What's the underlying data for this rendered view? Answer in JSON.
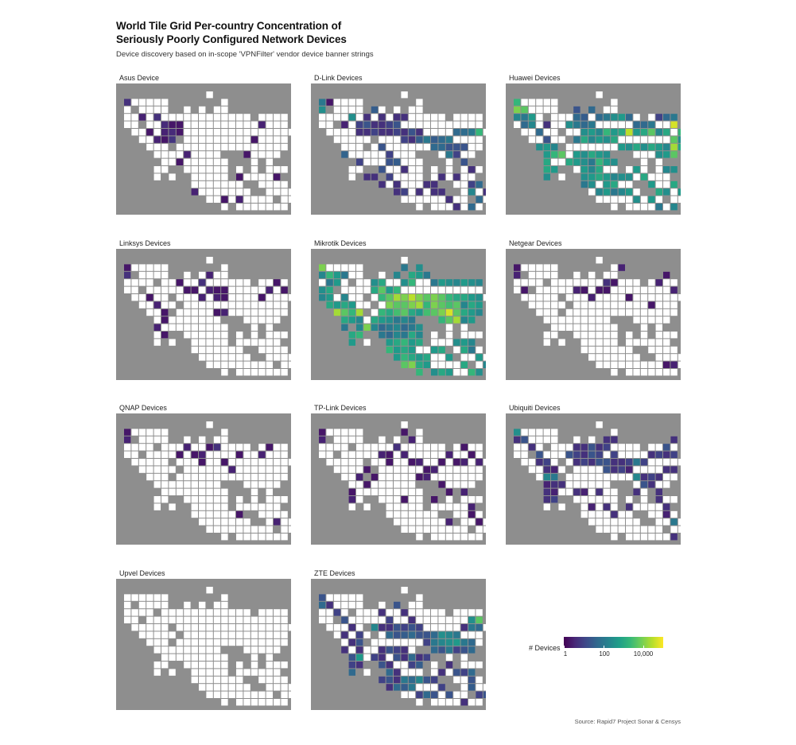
{
  "chart_data": {
    "type": "heatmap",
    "title_line1": "World Tile Grid Per-country Concentration of",
    "title_line2": "Seriously Poorly Configured Network Devices",
    "subtitle": "Device discovery based on in-scope 'VPNFilter' vendor device banner strings",
    "caption": "Source: Rapid7 Project Sonar & Censys",
    "legend": {
      "title": "# Devices",
      "scale": "log10",
      "min": 1,
      "max": 100000,
      "tick_values": [
        1,
        100,
        10000
      ],
      "tick_labels": [
        "1",
        "100",
        "10,000"
      ],
      "colors": [
        "#440154",
        "#482878",
        "#3e4989",
        "#31688e",
        "#26828e",
        "#1f9e89",
        "#35b779",
        "#6ece58",
        "#b5de2b",
        "#fde725"
      ]
    },
    "facets": [
      {
        "name": "Asus Device",
        "counts": {
          "0,1": 5,
          "2,3": 3,
          "4,3": 5,
          "5,4": 4,
          "3,5": 2,
          "4,6": 3,
          "5,6": 2,
          "6,6": 6,
          "5,5": 3,
          "6,5": 4,
          "7,5": 2,
          "6,4": 2,
          "7,4": 2,
          "8,8": 3,
          "7,9": 2,
          "9,13": 3,
          "15,11": 2,
          "15,14": 3,
          "16,8": 2,
          "17,6": 2,
          "18,4": 3,
          "20,11": 2,
          "13,14": 2
        }
      },
      {
        "name": "D-Link Devices",
        "counts": {
          "0,1": 100,
          "0,2": 300,
          "1,1": 2,
          "3,4": 3,
          "4,3": 300,
          "5,4": 10,
          "3,8": 40,
          "5,9": 10,
          "6,4": 20,
          "7,4": 5,
          "8,4": 5,
          "9,4": 10,
          "10,4": 20,
          "5,5": 5,
          "6,5": 5,
          "7,5": 10,
          "8,5": 5,
          "9,5": 5,
          "10,5": 10,
          "11,5": 5,
          "12,5": 20,
          "13,5": 5,
          "6,3": 5,
          "7,2": 30,
          "8,3": 5,
          "10,3": 5,
          "11,3": 5,
          "11,6": 10,
          "12,6": 5,
          "13,6": 30,
          "14,6": 100,
          "15,6": 30,
          "16,6": 50,
          "17,6": 100,
          "18,5": 50,
          "19,5": 60,
          "20,5": 100,
          "21,5": 2000,
          "15,7": 50,
          "16,7": 50,
          "17,7": 20,
          "18,7": 20,
          "19,7": 20,
          "17,8": 100,
          "18,8": 10,
          "19,9": 20,
          "8,7": 20,
          "9,8": 10,
          "8,10": 20,
          "7,11": 5,
          "9,11": 10,
          "10,12": 5,
          "10,13": 5,
          "11,13": 10,
          "16,11": 5,
          "18,11": 5,
          "20,10": 5,
          "20,12": 10,
          "21,12": 50,
          "20,13": 200,
          "21,14": 50,
          "22,13": 5,
          "20,15": 50,
          "18,15": 5,
          "17,14": 5,
          "16,13": 5,
          "6,11": 5,
          "15,12": 5,
          "15,13": 5,
          "9,9": 20,
          "10,9": 30,
          "11,10": 5,
          "8,12": 5,
          "13,13": 5,
          "14,12": 5
        }
      },
      {
        "name": "Huawei Devices",
        "counts": {
          "0,1": 2000,
          "0,2": 10000,
          "1,2": 5000,
          "1,3": 100,
          "0,3": 200,
          "1,4": 50,
          "2,3": 500,
          "2,4": 200,
          "3,5": 50,
          "4,4": 5,
          "4,6": 20,
          "3,7": 300,
          "4,7": 500,
          "5,7": 200,
          "5,8": 2000,
          "6,8": 5000,
          "4,8": 500,
          "4,9": 1000,
          "5,10": 500,
          "4,10": 1000,
          "4,11": 300,
          "8,2": 20,
          "8,3": 50,
          "7,4": 300,
          "8,4": 100,
          "9,4": 50,
          "10,4": 100,
          "11,3": 50,
          "12,3": 100,
          "9,3": 30,
          "10,2": 50,
          "13,3": 300,
          "14,3": 500,
          "15,3": 50,
          "16,4": 50,
          "17,4": 50,
          "18,4": 100,
          "20,3": 50,
          "21,3": 100,
          "19,3": 10,
          "9,5": 300,
          "10,5": 500,
          "11,5": 200,
          "12,5": 2000,
          "13,5": 500,
          "14,5": 1000,
          "15,5": 30000,
          "16,5": 500,
          "17,5": 1000,
          "18,5": 5000,
          "19,5": 200,
          "20,5": 1000,
          "21,4": 50000,
          "22,5": 2000,
          "21,6": 5000,
          "22,6": 300,
          "8,6": 100,
          "9,6": 1000,
          "10,6": 200,
          "11,6": 500,
          "12,6": 300,
          "13,6": 1000,
          "14,7": 500,
          "15,7": 300,
          "16,7": 1000,
          "17,7": 300,
          "18,7": 1000,
          "19,7": 500,
          "20,7": 200,
          "21,7": 20000,
          "22,7": 1000,
          "19,8": 300,
          "20,8": 500,
          "21,8": 5000,
          "8,8": 500,
          "9,8": 300,
          "10,8": 1000,
          "11,8": 500,
          "12,8": 300,
          "7,9": 1000,
          "8,9": 500,
          "9,9": 300,
          "10,9": 100,
          "11,9": 2000,
          "12,9": 500,
          "13,9": 300,
          "9,10": 500,
          "10,10": 200,
          "11,10": 1000,
          "9,11": 300,
          "10,11": 500,
          "11,11": 1000,
          "12,11": 500,
          "13,11": 200,
          "14,11": 300,
          "12,12": 500,
          "13,12": 1000,
          "9,12": 100,
          "10,12": 300,
          "11,13": 200,
          "12,13": 500,
          "13,13": 100,
          "14,13": 200,
          "15,13": 500,
          "16,14": 300,
          "18,14": 500,
          "19,13": 1000,
          "20,13": 300,
          "21,12": 1000,
          "21,10": 300,
          "20,10": 200,
          "22,13": 500,
          "19,15": 100,
          "21,15": 200,
          "16,10": 500,
          "15,11": 300,
          "17,11": 1000,
          "18,12": 500
        }
      },
      {
        "name": "Linksys Devices",
        "counts": {
          "0,1": 2,
          "0,2": 5,
          "3,5": 2,
          "4,6": 3,
          "5,7": 2,
          "5,8": 2,
          "4,9": 3,
          "5,10": 2,
          "7,3": 2,
          "8,4": 2,
          "10,3": 5,
          "11,2": 3,
          "11,4": 3,
          "9,4": 2,
          "10,5": 3,
          "12,4": 2,
          "12,5": 3,
          "13,4": 2,
          "13,5": 2,
          "18,5": 2,
          "19,4": 3,
          "20,3": 2,
          "21,4": 2,
          "12,7": 2,
          "13,7": 3
        }
      },
      {
        "name": "Mikrotik Devices",
        "counts": {
          "0,1": 10000,
          "0,2": 200,
          "1,3": 100,
          "2,3": 500,
          "0,4": 300,
          "1,4": 1000,
          "0,5": 200,
          "1,5": 500,
          "1,6": 1000,
          "2,6": 500,
          "3,5": 200,
          "3,6": 1000,
          "4,6": 500,
          "2,7": 20000,
          "3,7": 5000,
          "4,7": 2000,
          "5,7": 20000,
          "3,8": 1000,
          "4,8": 500,
          "5,8": 200,
          "6,9": 10000,
          "5,9": 200,
          "4,10": 1000,
          "4,11": 500,
          "5,10": 2000,
          "3,9": 100,
          "1,2": 2000,
          "2,2": 500,
          "3,2": 100,
          "7,3": 300,
          "8,3": 1000,
          "7,4": 1000,
          "8,4": 5000,
          "9,4": 500,
          "10,4": 2000,
          "11,3": 300,
          "12,3": 2000,
          "12,2": 1000,
          "13,1": 300,
          "13,2": 500,
          "14,2": 100,
          "10,2": 200,
          "11,1": 100,
          "15,3": 100,
          "16,3": 500,
          "17,3": 300,
          "18,3": 200,
          "19,3": 500,
          "20,3": 300,
          "21,3": 200,
          "9,5": 5000,
          "10,5": 20000,
          "11,5": 10000,
          "12,5": 30000,
          "13,5": 10000,
          "14,5": 5000,
          "15,5": 10000,
          "16,5": 5000,
          "17,5": 2000,
          "18,5": 1000,
          "19,5": 1000,
          "20,5": 500,
          "21,5": 300,
          "8,5": 2000,
          "9,6": 10000,
          "10,6": 5000,
          "11,6": 5000,
          "12,6": 10000,
          "13,6": 20000,
          "14,6": 2000,
          "15,6": 10000,
          "16,6": 5000,
          "17,6": 3000,
          "18,6": 5000,
          "19,6": 200,
          "20,6": 1000,
          "21,6": 500,
          "8,7": 2000,
          "9,7": 1000,
          "10,7": 3000,
          "11,7": 5000,
          "12,7": 1000,
          "13,7": 500,
          "14,7": 3000,
          "15,7": 5000,
          "16,7": 10000,
          "17,7": 50000,
          "18,7": 5000,
          "19,7": 1000,
          "20,7": 500,
          "21,7": 200,
          "16,8": 2000,
          "17,8": 5000,
          "18,8": 20000,
          "19,8": 200,
          "20,8": 500,
          "7,8": 1000,
          "8,8": 500,
          "9,8": 300,
          "10,8": 100,
          "11,8": 200,
          "12,8": 100,
          "7,9": 200,
          "8,9": 50,
          "9,9": 100,
          "10,9": 200,
          "11,9": 50,
          "12,9": 100,
          "13,9": 300,
          "8,10": 100,
          "9,10": 50,
          "10,10": 200,
          "11,10": 100,
          "12,10": 1000,
          "13,10": 200,
          "9,11": 500,
          "10,11": 1000,
          "11,11": 2000,
          "12,11": 500,
          "13,11": 1000,
          "9,12": 2000,
          "10,12": 500,
          "11,12": 1000,
          "12,12": 500,
          "10,13": 500,
          "11,13": 2000,
          "12,13": 1000,
          "13,13": 500,
          "11,14": 5000,
          "12,14": 10000,
          "13,14": 1000,
          "14,14": 500,
          "16,12": 1000,
          "17,13": 500,
          "18,11": 300,
          "19,11": 500,
          "20,11": 200,
          "19,12": 1000,
          "20,12": 100,
          "21,13": 500,
          "22,14": 200,
          "21,15": 300,
          "19,14": 1000,
          "17,15": 500,
          "16,15": 1000,
          "15,15": 300,
          "14,13": 1000,
          "15,12": 500,
          "13,15": 2000,
          "20,15": 2000
        }
      },
      {
        "name": "Netgear Devices",
        "counts": {
          "0,1": 2,
          "0,2": 3,
          "1,4": 2,
          "8,4": 3,
          "9,4": 2,
          "10,5": 3,
          "11,4": 2,
          "12,4": 2,
          "12,3": 5,
          "13,3": 2,
          "14,1": 3,
          "15,5": 2,
          "19,3": 3,
          "20,2": 2,
          "21,4": 3,
          "18,6": 2,
          "20,14": 2,
          "21,14": 3
        }
      },
      {
        "name": "QNAP Devices",
        "counts": {
          "0,1": 2,
          "0,2": 3,
          "7,4": 2,
          "8,3": 3,
          "9,4": 2,
          "10,4": 3,
          "10,5": 2,
          "11,3": 2,
          "12,3": 5,
          "13,5": 2,
          "14,6": 3,
          "18,4": 3,
          "19,3": 2,
          "15,4": 2,
          "20,13": 3,
          "15,12": 2
        }
      },
      {
        "name": "TP-Link Devices",
        "counts": {
          "0,1": 2,
          "0,2": 3,
          "8,4": 3,
          "9,4": 2,
          "10,3": 5,
          "11,4": 3,
          "12,5": 2,
          "13,5": 3,
          "14,6": 2,
          "15,6": 3,
          "16,5": 2,
          "17,4": 3,
          "18,5": 2,
          "19,5": 3,
          "20,4": 2,
          "19,3": 2,
          "21,5": 3,
          "6,6": 2,
          "7,7": 2,
          "5,7": 3,
          "6,8": 2,
          "4,9": 2,
          "4,10": 3,
          "11,10": 2,
          "13,7": 2,
          "14,7": 3,
          "16,8": 2,
          "17,9": 2,
          "19,9": 3,
          "20,11": 3,
          "20,12": 2,
          "21,13": 2,
          "12,2": 3,
          "11,1": 2,
          "9,5": 2,
          "15,10": 2,
          "17,13": 3
        }
      },
      {
        "name": "Ubiquiti Devices",
        "counts": {
          "0,1": 300,
          "0,2": 5,
          "1,2": 20,
          "2,3": 5,
          "3,4": 20,
          "3,5": 5,
          "4,5": 10,
          "4,6": 5,
          "4,7": 200,
          "5,6": 3,
          "5,7": 100,
          "6,8": 5,
          "4,8": 3,
          "5,8": 5,
          "4,9": 5,
          "5,9": 3,
          "4,10": 5,
          "5,10": 10,
          "8,3": 5,
          "7,4": 20,
          "8,4": 10,
          "9,4": 5,
          "10,4": 20,
          "11,4": 10,
          "10,3": 20,
          "11,3": 5,
          "12,3": 10,
          "12,2": 5,
          "13,2": 5,
          "9,3": 5,
          "13,4": 10,
          "13,5": 5,
          "12,5": 20,
          "14,5": 5,
          "15,5": 10,
          "16,5": 100,
          "17,5": 10,
          "18,4": 5,
          "19,4": 10,
          "20,4": 5,
          "20,3": 20,
          "21,4": 10,
          "21,2": 5,
          "8,5": 5,
          "9,5": 10,
          "10,5": 5,
          "11,5": 20,
          "12,6": 20,
          "13,6": 5,
          "14,6": 10,
          "15,6": 3,
          "16,7": 200,
          "17,7": 5,
          "18,7": 10,
          "19,7": 5,
          "20,6": 5,
          "21,6": 5,
          "17,8": 20,
          "18,8": 5,
          "19,9": 5,
          "16,9": 5,
          "8,9": 5,
          "9,9": 3,
          "11,9": 5,
          "10,11": 3,
          "15,11": 5,
          "20,11": 5,
          "20,12": 3,
          "21,13": 100,
          "21,15": 5,
          "19,10": 5,
          "12,11": 5,
          "13,12": 5
        }
      },
      {
        "name": "Upvel Devices",
        "counts": {}
      },
      {
        "name": "ZTE Devices",
        "counts": {
          "0,1": 20,
          "0,2": 50,
          "1,2": 5,
          "2,3": 10,
          "3,4": 20,
          "4,5": 5,
          "3,6": 5,
          "5,6": 10,
          "4,7": 5,
          "5,7": 20,
          "5,8": 5,
          "3,8": 5,
          "4,9": 20,
          "5,9": 500,
          "5,10": 5,
          "4,10": 10,
          "4,11": 50,
          "8,3": 5,
          "9,4": 10,
          "10,2": 20,
          "11,3": 5,
          "12,4": 5,
          "9,5": 5,
          "10,5": 20,
          "11,5": 10,
          "12,5": 20,
          "13,5": 10,
          "8,5": 5,
          "7,5": 200,
          "9,6": 50,
          "10,6": 20,
          "11,6": 30,
          "12,6": 50,
          "13,6": 20,
          "14,6": 20,
          "15,6": 50,
          "16,6": 300,
          "17,6": 200,
          "18,6": 100,
          "19,5": 5,
          "20,5": 100,
          "20,4": 300,
          "21,4": 5000,
          "21,5": 50,
          "14,7": 10,
          "15,7": 100,
          "16,7": 200,
          "17,7": 300,
          "18,7": 500,
          "19,7": 100,
          "20,7": 50,
          "15,8": 50,
          "16,8": 20,
          "17,8": 100,
          "18,8": 10,
          "19,8": 20,
          "20,8": 50,
          "8,8": 5,
          "9,8": 20,
          "10,8": 10,
          "11,8": 5,
          "7,9": 10,
          "8,9": 5,
          "10,9": 20,
          "11,9": 5,
          "12,9": 50,
          "8,10": 20,
          "9,10": 5,
          "12,10": 10,
          "13,10": 30,
          "9,11": 50,
          "10,11": 5,
          "8,12": 10,
          "9,12": 20,
          "10,12": 5,
          "11,12": 100,
          "12,12": 50,
          "13,12": 200,
          "9,13": 5,
          "10,13": 50,
          "11,13": 30,
          "12,13": 100,
          "13,14": 10,
          "14,14": 50,
          "15,14": 20,
          "16,13": 10,
          "17,14": 20,
          "16,11": 5,
          "17,10": 5,
          "18,11": 20,
          "19,11": 10,
          "20,11": 50,
          "20,12": 20,
          "20,13": 30,
          "21,14": 10,
          "22,14": 20,
          "19,15": 5,
          "14,12": 20,
          "15,12": 10,
          "13,9": 5,
          "14,9": 10
        }
      }
    ]
  }
}
